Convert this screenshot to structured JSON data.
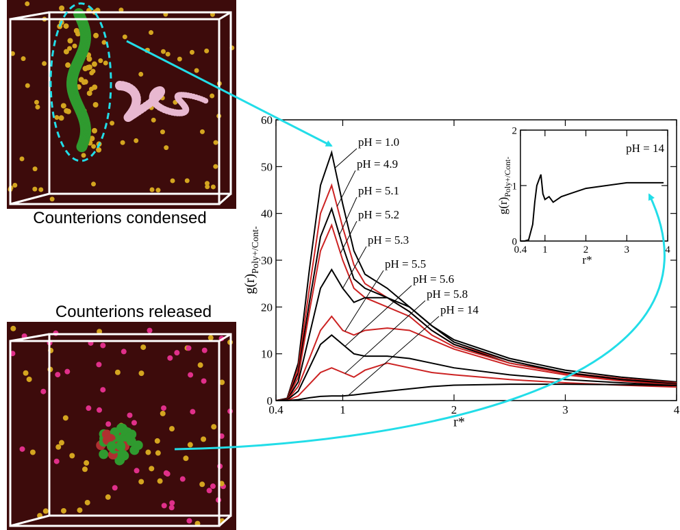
{
  "captions": [
    "Counterions condensed",
    "Counterions released"
  ],
  "chart_data": [
    {
      "type": "line",
      "y_label": "g(r)",
      "y_label_sub": "Poly+/Cont-",
      "x_label": "r*",
      "xlim": [
        0.4,
        4
      ],
      "ylim": [
        0,
        60
      ],
      "xticks": [
        0.4,
        1,
        2,
        3,
        4
      ],
      "yticks": [
        0,
        10,
        20,
        30,
        40,
        50,
        60
      ],
      "x": [
        0.4,
        0.5,
        0.6,
        0.7,
        0.8,
        0.9,
        1.0,
        1.1,
        1.2,
        1.4,
        1.6,
        1.8,
        2.0,
        2.5,
        3.0,
        3.5,
        4.0
      ],
      "series": [
        {
          "name": "pH = 1.0",
          "color": "#000000",
          "values": [
            0,
            0.5,
            8,
            28,
            46,
            53,
            42,
            32,
            27,
            24,
            20,
            16,
            13,
            9,
            6.5,
            5,
            4
          ]
        },
        {
          "name": "pH = 4.9",
          "color": "#cc2222",
          "values": [
            0,
            0.4,
            7,
            24,
            40,
            46,
            37,
            29,
            25,
            22,
            19,
            15,
            12,
            8.5,
            6,
            4.7,
            3.8
          ]
        },
        {
          "name": "pH = 5.1",
          "color": "#000000",
          "values": [
            0,
            0.4,
            6,
            21,
            35,
            41,
            33,
            26,
            24,
            22,
            19,
            15,
            12,
            8,
            6,
            4.5,
            3.7
          ]
        },
        {
          "name": "pH = 5.2",
          "color": "#cc2222",
          "values": [
            0,
            0.3,
            5,
            19,
            32,
            37.5,
            30,
            24,
            22,
            20,
            18,
            14,
            11.5,
            8,
            5.8,
            4.4,
            3.6
          ]
        },
        {
          "name": "pH = 5.3",
          "color": "#000000",
          "values": [
            0,
            0.2,
            4,
            14,
            24,
            28,
            24,
            21,
            22,
            22,
            20,
            16,
            12.5,
            8.5,
            6,
            4.5,
            3.5
          ]
        },
        {
          "name": "pH = 5.5",
          "color": "#cc2222",
          "values": [
            0,
            0.1,
            3,
            9,
            15,
            18,
            15,
            14,
            15,
            15.5,
            15,
            13,
            11,
            7.5,
            5.5,
            4.2,
            3.3
          ]
        },
        {
          "name": "pH = 5.6",
          "color": "#000000",
          "values": [
            0,
            0.1,
            2,
            7,
            12,
            14,
            12,
            10,
            9.5,
            9.5,
            9,
            8,
            7,
            5.5,
            4.5,
            3.8,
            3.2
          ]
        },
        {
          "name": "pH = 5.8",
          "color": "#cc2222",
          "values": [
            0,
            0,
            1,
            3.5,
            6,
            7,
            6,
            5,
            6.5,
            8,
            7,
            6,
            5.5,
            4.5,
            3.8,
            3.3,
            2.9
          ]
        },
        {
          "name": "pH = 14",
          "color": "#000000",
          "values": [
            0,
            0,
            0.2,
            0.6,
            0.9,
            1,
            1,
            1.2,
            1.5,
            2,
            2.5,
            3,
            3.3,
            3.5,
            3.5,
            3.4,
            3.2
          ]
        }
      ]
    },
    {
      "type": "line",
      "y_label": "g(r)",
      "y_label_sub": "Poly+/Cont-",
      "x_label": "r*",
      "xlim": [
        0.4,
        4
      ],
      "ylim": [
        0,
        2
      ],
      "xticks": [
        0.4,
        1,
        2,
        3,
        4
      ],
      "yticks": [
        0,
        1,
        2
      ],
      "x": [
        0.4,
        0.5,
        0.6,
        0.7,
        0.75,
        0.8,
        0.85,
        0.9,
        0.95,
        1.0,
        1.1,
        1.2,
        1.4,
        1.6,
        1.8,
        2.0,
        2.5,
        3.0,
        3.5,
        3.9
      ],
      "series": [
        {
          "name": "pH = 14",
          "color": "#000000",
          "values": [
            0,
            0,
            0.02,
            0.3,
            0.7,
            1.0,
            1.1,
            1.2,
            0.85,
            0.75,
            0.8,
            0.7,
            0.8,
            0.85,
            0.9,
            0.95,
            1.0,
            1.05,
            1.05,
            1.05
          ]
        }
      ]
    }
  ]
}
